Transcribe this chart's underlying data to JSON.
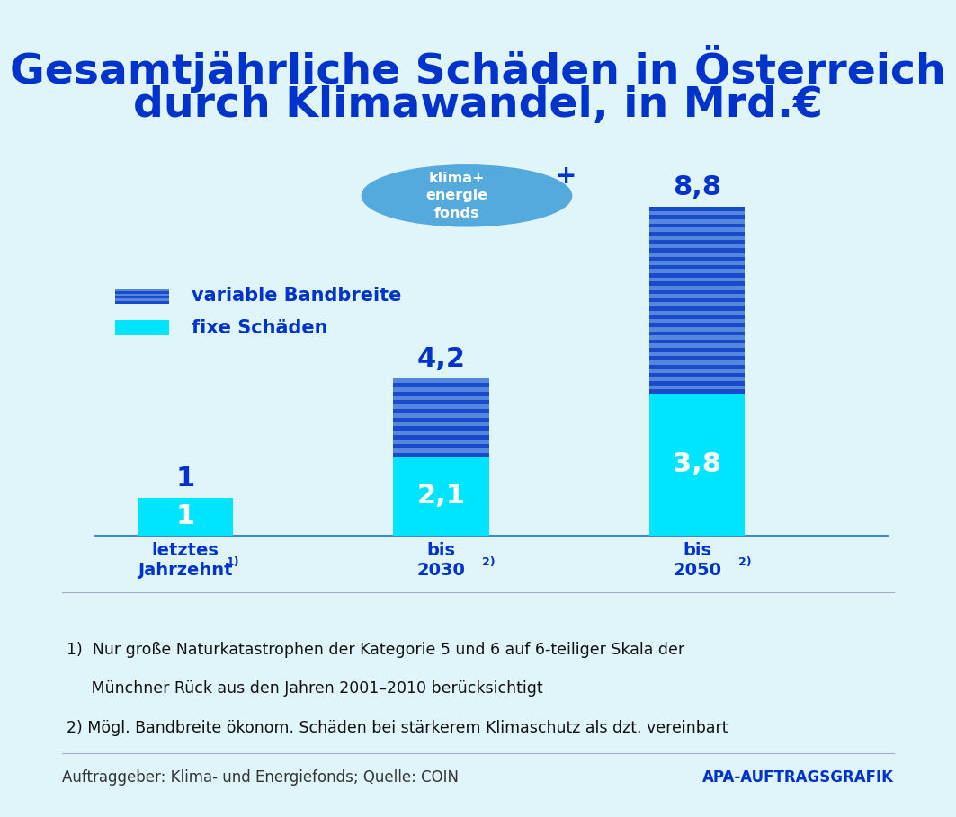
{
  "title_line1": "Gesamtjährliche Schäden in Österreich",
  "title_line2": "durch Klimawandel, in Mrd.€",
  "title_color": "#0033cc",
  "background_color": "#dff5f9",
  "fixe_values": [
    1.0,
    2.1,
    3.8
  ],
  "variable_values": [
    0.0,
    2.1,
    5.0
  ],
  "total_values": [
    1.0,
    4.2,
    8.8
  ],
  "fixe_label_values": [
    "1",
    "2,1",
    "3,8"
  ],
  "total_label_values": [
    "1",
    "4,2",
    "8,8"
  ],
  "fixe_color": "#00e5ff",
  "variable_color_dark": "#1a4acc",
  "variable_color_light": "#5588dd",
  "bar_positions": [
    1,
    3,
    5
  ],
  "bar_width": 0.75,
  "legend_fixe": "fixe Schäden",
  "legend_variable": "variable Bandbreite",
  "legend_color_fixe": "#00e5ff",
  "legend_color_variable": "#1a4acc",
  "footnote1_prefix": "1)  Nur große Naturkatastrophen der Kategorie 5 und 6 auf 6-teiliger Skala der",
  "footnote1_cont": "     Münchner Rück aus den Jahren 2001–2010 berücksichtigt",
  "footnote2": "2) Mögl. Bandbreite ökonom. Schäden bei stärkerem Klimaschutz als dzt. vereinbart",
  "source_left": "Auftraggeber: Klima- und Energiefonds; Quelle: COIN",
  "source_right": "APA-AUFTRAGSGRAFIK",
  "circle_text": "klima+\nenergie\nfonds",
  "circle_color": "#55aadd",
  "label_color_inside": "#ffffff",
  "label_color_outside": "#0033cc",
  "axis_line_color": "#4488cc",
  "title_fontsize": 34,
  "bar_label_fontsize": 22,
  "legend_fontsize": 15,
  "footnote_fontsize": 12.5,
  "source_fontsize": 12,
  "xlabel_fontsize": 14
}
